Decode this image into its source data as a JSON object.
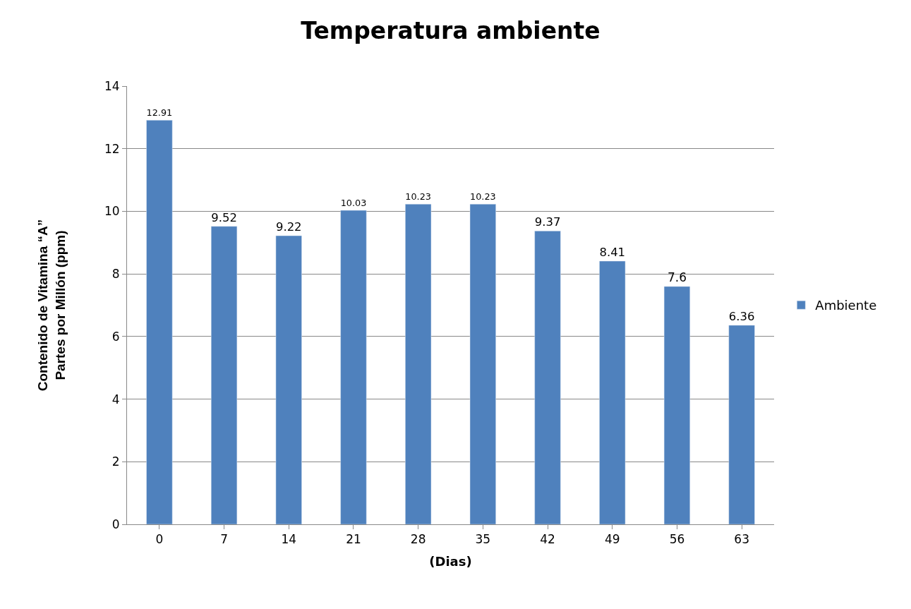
{
  "chart_data": {
    "type": "bar",
    "title": "Temperatura ambiente",
    "xlabel": "(Dias)",
    "ylabel": "Contenido de Vitamina “A”\nPartes por Millón (ppm)",
    "categories": [
      "0",
      "7",
      "14",
      "21",
      "28",
      "35",
      "42",
      "49",
      "56",
      "63"
    ],
    "series": [
      {
        "name": "Ambiente",
        "color": "#4f81bd",
        "values": [
          12.91,
          9.52,
          9.22,
          10.03,
          10.23,
          10.23,
          9.37,
          8.41,
          7.6,
          6.36
        ]
      }
    ],
    "ylim": [
      0,
      14
    ],
    "yticks": [
      0,
      2,
      4,
      6,
      8,
      10,
      12,
      14
    ],
    "grid": "y",
    "legend": "right",
    "data_labels": true
  }
}
